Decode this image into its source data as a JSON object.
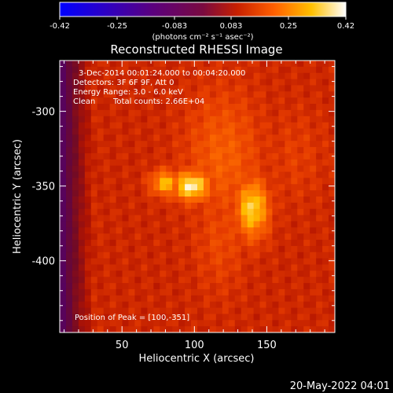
{
  "colorbar": {
    "tick_labels": [
      "-0.42",
      "-0.25",
      "-0.083",
      "0.083",
      "0.25",
      "0.42"
    ],
    "unit_label": "(photons cm⁻² s⁻¹ asec⁻²)",
    "range": [
      -0.42,
      0.42
    ]
  },
  "title": "Reconstructed RHESSI Image",
  "info": {
    "line1": "3-Dec-2014 00:01:24.000 to 00:04:20.000",
    "line2": "Detectors: 3F 6F 9F, Att 0",
    "line3": "Energy Range: 3.0 - 6.0 keV",
    "line4_a": "Clean",
    "line4_b": "Total counts: 2.66E+04"
  },
  "peak_label": "Position of Peak = [100,-351]",
  "x_axis": {
    "label": "Heliocentric X (arcsec)",
    "ticks": [
      "50",
      "100",
      "150"
    ]
  },
  "y_axis": {
    "label": "Heliocentric Y (arcsec)",
    "ticks": [
      "-300",
      "-350",
      "-400"
    ]
  },
  "footer_date": "20-May-2022 04:01",
  "chart_data": {
    "type": "heatmap",
    "title": "Reconstructed RHESSI Image",
    "xlabel": "Heliocentric X (arcsec)",
    "ylabel": "Heliocentric Y (arcsec)",
    "xlim": [
      7,
      197
    ],
    "ylim": [
      -448,
      -266
    ],
    "xticks": [
      50,
      100,
      150
    ],
    "yticks": [
      -300,
      -350,
      -400
    ],
    "colorscale": "red-temperature (blue=negative, white=positive)",
    "value_range": [
      -0.42,
      0.42
    ],
    "peak": {
      "x": 100,
      "y": -351
    },
    "sources": [
      {
        "x": 98,
        "y": -350,
        "value": 0.4,
        "sx": 9,
        "sy": 7
      },
      {
        "x": 80,
        "y": -348,
        "value": 0.33,
        "sx": 7,
        "sy": 6
      },
      {
        "x": 140,
        "y": -365,
        "value": 0.36,
        "sx": 8,
        "sy": 14
      },
      {
        "x": 120,
        "y": -330,
        "value": 0.22,
        "sx": 18,
        "sy": 30
      },
      {
        "x": 118,
        "y": -385,
        "value": 0.18,
        "sx": 12,
        "sy": 25
      },
      {
        "x": 170,
        "y": -330,
        "value": 0.16,
        "sx": 14,
        "sy": 22
      }
    ],
    "background_value": 0.12,
    "negative_region": {
      "x_max": 30,
      "value": -0.08
    }
  }
}
